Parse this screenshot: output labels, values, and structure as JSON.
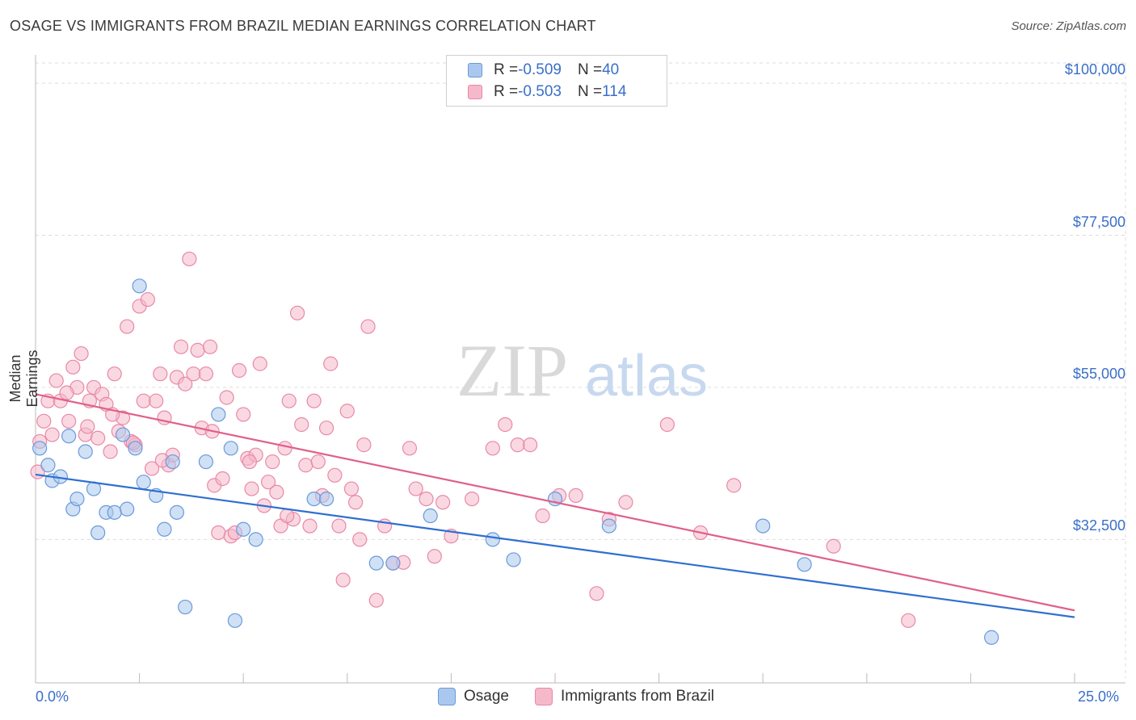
{
  "header": {
    "title": "OSAGE VS IMMIGRANTS FROM BRAZIL MEDIAN EARNINGS CORRELATION CHART",
    "source": "Source: ZipAtlas.com"
  },
  "legend": {
    "rows": [
      {
        "r_label": "R = ",
        "r_value": "-0.509",
        "n_label": "N = ",
        "n_value": "40"
      },
      {
        "r_label": "R = ",
        "r_value": "-0.503",
        "n_label": "N = ",
        "n_value": "114"
      }
    ]
  },
  "watermark": {
    "zip": "ZIP",
    "atlas": "atlas"
  },
  "colors": {
    "osage_fill": "#aac8ef",
    "osage_stroke": "#6a9ad8",
    "osage_line": "#2f6fd0",
    "brazil_fill": "#f6b8cb",
    "brazil_stroke": "#e889a8",
    "brazil_line": "#e0608a",
    "axis_label": "#3a6fc9",
    "grid": "#dddddd"
  },
  "chart_data": {
    "type": "scatter",
    "title": "OSAGE VS IMMIGRANTS FROM BRAZIL MEDIAN EARNINGS CORRELATION CHART",
    "xlabel": "",
    "ylabel": "Median Earnings",
    "xlim": [
      0,
      25
    ],
    "ylim": [
      12000,
      103000
    ],
    "x_tick_labels": [
      "0.0%",
      "25.0%"
    ],
    "y_ticks": [
      32500,
      55000,
      77500,
      100000
    ],
    "y_tick_labels": [
      "$32,500",
      "$55,000",
      "$77,500",
      "$100,000"
    ],
    "grid": true,
    "legend_position": "top-center",
    "series": [
      {
        "name": "Osage",
        "trend": {
          "x": [
            0,
            25
          ],
          "y": [
            42100,
            21000
          ]
        },
        "points": [
          [
            0.1,
            46000
          ],
          [
            0.3,
            43500
          ],
          [
            0.4,
            41200
          ],
          [
            0.6,
            41800
          ],
          [
            0.8,
            47800
          ],
          [
            0.9,
            37000
          ],
          [
            1.0,
            38500
          ],
          [
            1.2,
            45500
          ],
          [
            1.4,
            40000
          ],
          [
            1.5,
            33500
          ],
          [
            1.7,
            36500
          ],
          [
            1.9,
            36500
          ],
          [
            2.1,
            48000
          ],
          [
            2.2,
            37000
          ],
          [
            2.4,
            46000
          ],
          [
            2.5,
            70000
          ],
          [
            2.6,
            41000
          ],
          [
            2.9,
            39000
          ],
          [
            3.1,
            34000
          ],
          [
            3.3,
            44000
          ],
          [
            3.4,
            36500
          ],
          [
            3.6,
            22500
          ],
          [
            4.1,
            44000
          ],
          [
            4.4,
            51000
          ],
          [
            4.7,
            46000
          ],
          [
            4.8,
            20500
          ],
          [
            5.0,
            34000
          ],
          [
            5.3,
            32500
          ],
          [
            6.7,
            38500
          ],
          [
            7.0,
            38500
          ],
          [
            8.2,
            29000
          ],
          [
            8.6,
            29000
          ],
          [
            9.5,
            36000
          ],
          [
            11.0,
            32500
          ],
          [
            11.5,
            29500
          ],
          [
            12.5,
            38500
          ],
          [
            13.8,
            34500
          ],
          [
            17.5,
            34500
          ],
          [
            18.5,
            28800
          ],
          [
            23.0,
            18000
          ]
        ]
      },
      {
        "name": "Immigrants from Brazil",
        "trend": {
          "x": [
            0,
            25
          ],
          "y": [
            54000,
            22000
          ]
        },
        "points": [
          [
            0.05,
            42500
          ],
          [
            0.1,
            47000
          ],
          [
            0.2,
            50000
          ],
          [
            0.3,
            53000
          ],
          [
            0.4,
            48000
          ],
          [
            0.5,
            56000
          ],
          [
            0.6,
            53000
          ],
          [
            0.8,
            50000
          ],
          [
            0.9,
            58000
          ],
          [
            1.0,
            55000
          ],
          [
            1.1,
            60000
          ],
          [
            1.2,
            48000
          ],
          [
            1.3,
            53000
          ],
          [
            1.4,
            55000
          ],
          [
            1.5,
            47500
          ],
          [
            1.6,
            54000
          ],
          [
            1.7,
            52500
          ],
          [
            1.8,
            45500
          ],
          [
            1.9,
            57000
          ],
          [
            2.0,
            48500
          ],
          [
            2.1,
            50500
          ],
          [
            2.2,
            64000
          ],
          [
            2.3,
            47000
          ],
          [
            2.4,
            46500
          ],
          [
            2.5,
            67000
          ],
          [
            2.6,
            53000
          ],
          [
            2.7,
            68000
          ],
          [
            2.8,
            43000
          ],
          [
            2.9,
            53000
          ],
          [
            3.0,
            57000
          ],
          [
            3.1,
            50500
          ],
          [
            3.2,
            43500
          ],
          [
            3.3,
            45000
          ],
          [
            3.4,
            56500
          ],
          [
            3.5,
            61000
          ],
          [
            3.6,
            55500
          ],
          [
            3.7,
            74000
          ],
          [
            3.8,
            57000
          ],
          [
            3.9,
            60500
          ],
          [
            4.0,
            49000
          ],
          [
            4.1,
            57000
          ],
          [
            4.2,
            61000
          ],
          [
            4.3,
            40500
          ],
          [
            4.4,
            33500
          ],
          [
            4.5,
            41500
          ],
          [
            4.6,
            53500
          ],
          [
            4.7,
            33000
          ],
          [
            4.8,
            33500
          ],
          [
            4.9,
            57500
          ],
          [
            5.0,
            51000
          ],
          [
            5.1,
            44500
          ],
          [
            5.2,
            40000
          ],
          [
            5.3,
            45000
          ],
          [
            5.4,
            58500
          ],
          [
            5.5,
            37500
          ],
          [
            5.6,
            41000
          ],
          [
            5.7,
            44000
          ],
          [
            5.8,
            39500
          ],
          [
            5.9,
            34500
          ],
          [
            6.0,
            46000
          ],
          [
            6.1,
            53000
          ],
          [
            6.2,
            35500
          ],
          [
            6.3,
            66000
          ],
          [
            6.4,
            49500
          ],
          [
            6.5,
            43500
          ],
          [
            6.6,
            34500
          ],
          [
            6.7,
            53000
          ],
          [
            6.8,
            44000
          ],
          [
            6.9,
            39000
          ],
          [
            7.0,
            49000
          ],
          [
            7.1,
            58500
          ],
          [
            7.2,
            42000
          ],
          [
            7.3,
            34500
          ],
          [
            7.4,
            26500
          ],
          [
            7.5,
            51500
          ],
          [
            7.6,
            40000
          ],
          [
            7.7,
            38000
          ],
          [
            7.8,
            32500
          ],
          [
            7.9,
            46500
          ],
          [
            8.0,
            64000
          ],
          [
            8.2,
            23500
          ],
          [
            8.4,
            34500
          ],
          [
            8.6,
            29000
          ],
          [
            9.0,
            46000
          ],
          [
            9.4,
            38500
          ],
          [
            9.6,
            30000
          ],
          [
            9.8,
            38000
          ],
          [
            10.0,
            33000
          ],
          [
            10.5,
            38500
          ],
          [
            11.0,
            46000
          ],
          [
            11.3,
            49500
          ],
          [
            11.6,
            46500
          ],
          [
            11.9,
            46500
          ],
          [
            12.2,
            36000
          ],
          [
            12.6,
            39000
          ],
          [
            13.0,
            39000
          ],
          [
            13.5,
            24500
          ],
          [
            13.8,
            35500
          ],
          [
            14.2,
            38000
          ],
          [
            15.2,
            49500
          ],
          [
            16.0,
            33500
          ],
          [
            16.8,
            40500
          ],
          [
            19.2,
            31500
          ],
          [
            21.0,
            20500
          ],
          [
            5.15,
            44000
          ],
          [
            6.05,
            36000
          ],
          [
            3.05,
            44200
          ],
          [
            4.25,
            48500
          ],
          [
            2.35,
            46800
          ],
          [
            1.25,
            49200
          ],
          [
            0.75,
            54200
          ],
          [
            1.85,
            51000
          ],
          [
            8.85,
            29100
          ],
          [
            9.15,
            40000
          ]
        ]
      }
    ]
  },
  "bottom_legend": {
    "items": [
      {
        "label": "Osage"
      },
      {
        "label": "Immigrants from Brazil"
      }
    ]
  }
}
